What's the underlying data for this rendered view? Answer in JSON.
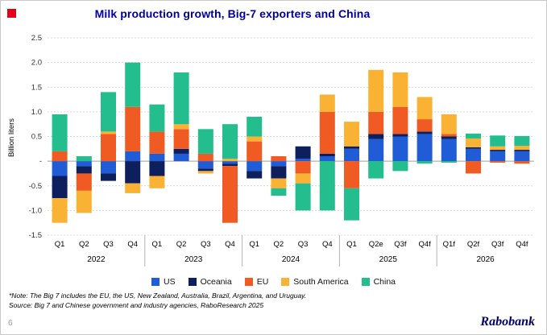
{
  "title": "Milk production growth, Big-7 exporters and China",
  "colors": {
    "title_blue": "#000099",
    "accent_red": "#e2001a",
    "brand_navy": "#000066",
    "gridline": "#d9d9d9",
    "zero_line": "#a0a0a0",
    "separator": "#b3b3b3"
  },
  "y_axis": {
    "title": "Billion liters",
    "ticks": [
      "2.5",
      "2.0",
      "1.5",
      "1.0",
      "0.5",
      "-",
      "-0.5",
      "-1.0",
      "-1.5"
    ]
  },
  "footnote": {
    "note": "*Note: The Big 7 includes the EU, the US, New Zealand, Australia, Brazil, Argentina, and Uruguay.",
    "source": "Source: Big 7 and Chinese government and industry agencies, RaboResearch 2025"
  },
  "page": {
    "page_number": "6",
    "brand": "Rabobank"
  },
  "chart_data": {
    "type": "bar",
    "stacked": true,
    "title": "Milk production growth, Big-7 exporters and China",
    "ylabel": "Billion liters",
    "ylim": [
      -1.5,
      2.5
    ],
    "grid": true,
    "legend_position": "bottom",
    "categories": [
      "Q1",
      "Q2",
      "Q3",
      "Q4",
      "Q1",
      "Q2",
      "Q3",
      "Q4",
      "Q1",
      "Q2",
      "Q3",
      "Q4",
      "Q1",
      "Q2e",
      "Q3f",
      "Q4f",
      "Q1f",
      "Q2f",
      "Q3f",
      "Q4f"
    ],
    "groups": [
      {
        "year": "2022"
      },
      {
        "year": "2023"
      },
      {
        "year": "2024"
      },
      {
        "year": "2025"
      },
      {
        "year": "2026"
      }
    ],
    "series": [
      {
        "name": "US",
        "color": "#1f5cd6",
        "values": [
          -0.3,
          -0.1,
          -0.25,
          0.2,
          0.15,
          0.15,
          -0.15,
          -0.05,
          -0.2,
          -0.1,
          0.05,
          0.1,
          0.25,
          0.45,
          0.5,
          0.55,
          0.45,
          0.25,
          0.2,
          0.2
        ]
      },
      {
        "name": "Oceania",
        "color": "#0d1f5c",
        "values": [
          -0.45,
          -0.15,
          -0.15,
          -0.45,
          -0.3,
          0.1,
          -0.05,
          -0.05,
          -0.15,
          -0.25,
          0.25,
          0.05,
          0.05,
          0.1,
          0.05,
          0.05,
          0.05,
          0.03,
          0.03,
          0.03
        ]
      },
      {
        "name": "EU",
        "color": "#f05b24",
        "values": [
          0.2,
          -0.35,
          0.55,
          0.9,
          0.45,
          0.4,
          0.15,
          -1.15,
          0.4,
          0.1,
          -0.25,
          0.85,
          -0.55,
          0.45,
          0.55,
          0.25,
          0.05,
          -0.25,
          -0.03,
          -0.05
        ]
      },
      {
        "name": "South America",
        "color": "#f9b234",
        "values": [
          -0.5,
          -0.45,
          0.05,
          -0.2,
          -0.25,
          0.1,
          -0.05,
          0.05,
          0.1,
          -0.2,
          -0.2,
          0.35,
          0.5,
          0.85,
          0.7,
          0.45,
          0.4,
          0.18,
          0.07,
          0.08
        ]
      },
      {
        "name": "China",
        "color": "#23bd8e",
        "values": [
          0.75,
          0.1,
          0.8,
          0.9,
          0.55,
          1.05,
          0.5,
          0.7,
          0.4,
          -0.15,
          -0.55,
          -1.0,
          -0.65,
          -0.35,
          -0.2,
          -0.05,
          -0.03,
          0.1,
          0.22,
          0.2
        ]
      }
    ]
  }
}
